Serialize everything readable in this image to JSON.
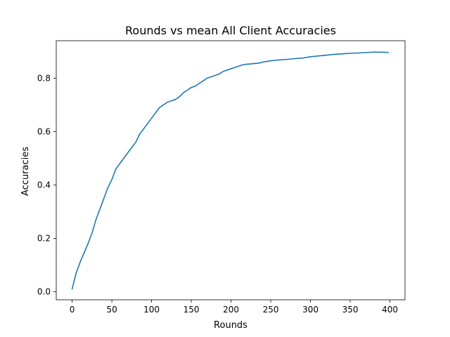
{
  "chart_data": {
    "type": "line",
    "title": "Rounds vs mean All Client Accuracies",
    "xlabel": "Rounds",
    "ylabel": "Accuracies",
    "xlim": [
      -20,
      419
    ],
    "ylim": [
      -0.03,
      0.94
    ],
    "xticks": [
      0,
      50,
      100,
      150,
      200,
      250,
      300,
      350,
      400
    ],
    "yticks": [
      0.0,
      0.2,
      0.4,
      0.6,
      0.8
    ],
    "xtick_labels": [
      "0",
      "50",
      "100",
      "150",
      "200",
      "250",
      "300",
      "350",
      "400"
    ],
    "ytick_labels": [
      "0.0",
      "0.2",
      "0.4",
      "0.6",
      "0.8"
    ],
    "grid": false,
    "legend": "none",
    "series": [
      {
        "color": "#1f77b4",
        "x": [
          0,
          5,
          10,
          20,
          25,
          30,
          35,
          40,
          45,
          50,
          55,
          60,
          65,
          70,
          75,
          80,
          85,
          90,
          95,
          100,
          105,
          110,
          115,
          120,
          125,
          130,
          135,
          140,
          145,
          150,
          155,
          160,
          165,
          170,
          175,
          180,
          185,
          190,
          195,
          200,
          205,
          210,
          215,
          220,
          225,
          230,
          235,
          240,
          250,
          260,
          270,
          280,
          290,
          300,
          310,
          320,
          330,
          340,
          350,
          360,
          370,
          380,
          390,
          398
        ],
        "y": [
          0.01,
          0.07,
          0.11,
          0.18,
          0.22,
          0.27,
          0.31,
          0.35,
          0.39,
          0.42,
          0.46,
          0.48,
          0.5,
          0.52,
          0.54,
          0.56,
          0.59,
          0.61,
          0.63,
          0.65,
          0.67,
          0.69,
          0.7,
          0.71,
          0.715,
          0.72,
          0.73,
          0.745,
          0.755,
          0.765,
          0.77,
          0.78,
          0.79,
          0.8,
          0.805,
          0.81,
          0.815,
          0.825,
          0.83,
          0.835,
          0.84,
          0.845,
          0.85,
          0.852,
          0.853,
          0.855,
          0.856,
          0.86,
          0.865,
          0.868,
          0.87,
          0.873,
          0.875,
          0.88,
          0.883,
          0.886,
          0.889,
          0.891,
          0.893,
          0.894,
          0.896,
          0.897,
          0.897,
          0.896
        ]
      }
    ]
  }
}
